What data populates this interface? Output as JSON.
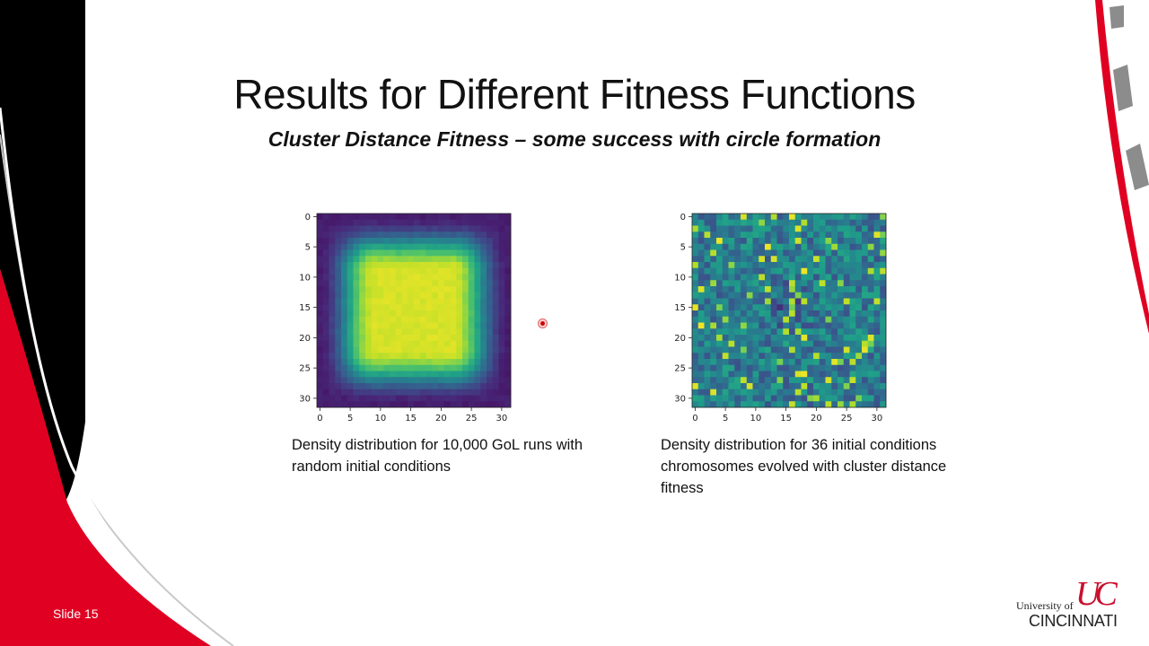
{
  "slide": {
    "title": "Results for Different Fitness Functions",
    "subtitle": "Cluster Distance Fitness – some success with circle formation",
    "slide_number_label": "Slide 15"
  },
  "figures": [
    {
      "caption": "Density distribution for 10,000 GoL runs with random initial conditions",
      "ticks": [
        "0",
        "5",
        "10",
        "15",
        "20",
        "25",
        "30"
      ]
    },
    {
      "caption": "Density distribution for 36 initial conditions chromosomes evolved with cluster distance fitness",
      "ticks": [
        "0",
        "5",
        "10",
        "15",
        "20",
        "25",
        "30"
      ]
    }
  ],
  "logo": {
    "line1": "University of",
    "line2": "CINCINNATI",
    "mark": "UC"
  },
  "colors": {
    "brand_red": "#e00122",
    "black_band": "#000000",
    "colormap": "viridis"
  },
  "chart_data": [
    {
      "type": "heatmap",
      "grid_size": [
        32,
        32
      ],
      "x_ticks": [
        0,
        5,
        10,
        15,
        20,
        25,
        30
      ],
      "y_ticks": [
        0,
        5,
        10,
        15,
        20,
        25,
        30
      ],
      "xlim": [
        0,
        31
      ],
      "ylim": [
        31,
        0
      ],
      "pattern": "smooth square-ish peak centered near (15.5,15.5); low (dark purple) at corners, high (yellow) in center region ~7–24",
      "colormap": "viridis"
    },
    {
      "type": "heatmap",
      "grid_size": [
        32,
        32
      ],
      "x_ticks": [
        0,
        5,
        10,
        15,
        20,
        25,
        30
      ],
      "y_ticks": [
        0,
        5,
        10,
        15,
        20,
        25,
        30
      ],
      "xlim": [
        0,
        31
      ],
      "ylim": [
        31,
        0
      ],
      "pattern": "noisy values, mostly mid-range green/teal, darker depression near center (~13–17), scattered bright yellow cells near edges",
      "colormap": "viridis"
    }
  ]
}
